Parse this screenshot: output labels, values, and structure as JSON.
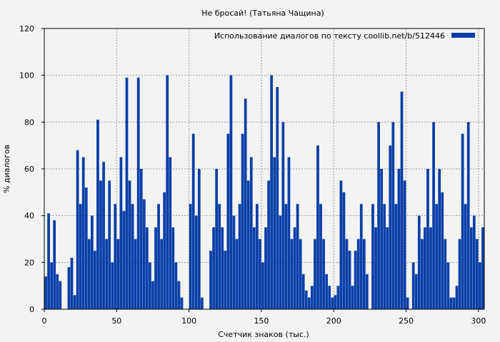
{
  "chart_data": {
    "type": "bar",
    "title": "Не бросай! (Татьяна  Чащина)",
    "xlabel": "Счетчик знаков (тыс.)",
    "ylabel": "% диалогов",
    "xlim": [
      0,
      304
    ],
    "ylim": [
      0,
      120
    ],
    "xticks": [
      0,
      50,
      100,
      150,
      200,
      250,
      300
    ],
    "yticks": [
      0,
      20,
      40,
      60,
      80,
      100,
      120
    ],
    "grid": true,
    "legend_position": "top-right",
    "colors": {
      "bar": "#0a3fa8",
      "grid": "#999999",
      "background": "#f3f3f3"
    },
    "series": [
      {
        "name": "Использование диалогов по тексту  coollib.net/b/512446",
        "x": [
          1,
          3,
          5,
          7,
          9,
          11,
          13,
          15,
          17,
          19,
          21,
          23,
          25,
          27,
          29,
          31,
          33,
          35,
          37,
          39,
          41,
          43,
          45,
          47,
          49,
          51,
          53,
          55,
          57,
          59,
          61,
          63,
          65,
          67,
          69,
          71,
          73,
          75,
          77,
          79,
          81,
          83,
          85,
          87,
          89,
          91,
          93,
          95,
          97,
          99,
          101,
          103,
          105,
          107,
          109,
          111,
          113,
          115,
          117,
          119,
          121,
          123,
          125,
          127,
          129,
          131,
          133,
          135,
          137,
          139,
          141,
          143,
          145,
          147,
          149,
          151,
          153,
          155,
          157,
          159,
          161,
          163,
          165,
          167,
          169,
          171,
          173,
          175,
          177,
          179,
          181,
          183,
          185,
          187,
          189,
          191,
          193,
          195,
          197,
          199,
          201,
          203,
          205,
          207,
          209,
          211,
          213,
          215,
          217,
          219,
          221,
          223,
          225,
          227,
          229,
          231,
          233,
          235,
          237,
          239,
          241,
          243,
          245,
          247,
          249,
          251,
          253,
          255,
          257,
          259,
          261,
          263,
          265,
          267,
          269,
          271,
          273,
          275,
          277,
          279,
          281,
          283,
          285,
          287,
          289,
          291,
          293,
          295,
          297,
          299,
          301,
          303
        ],
        "values": [
          14,
          41,
          20,
          38,
          15,
          12,
          0,
          0,
          18,
          22,
          6,
          68,
          45,
          65,
          52,
          30,
          40,
          25,
          81,
          55,
          63,
          30,
          55,
          20,
          45,
          30,
          65,
          42,
          99,
          55,
          45,
          30,
          99,
          60,
          47,
          35,
          20,
          12,
          35,
          45,
          30,
          50,
          100,
          65,
          35,
          20,
          12,
          5,
          0,
          0,
          45,
          75,
          40,
          60,
          5,
          0,
          0,
          25,
          35,
          60,
          45,
          35,
          25,
          75,
          100,
          40,
          30,
          45,
          75,
          90,
          55,
          65,
          35,
          45,
          30,
          20,
          35,
          55,
          100,
          65,
          95,
          40,
          80,
          45,
          65,
          30,
          35,
          45,
          30,
          15,
          8,
          5,
          10,
          30,
          70,
          45,
          30,
          15,
          10,
          5,
          6,
          10,
          55,
          50,
          30,
          25,
          10,
          25,
          30,
          45,
          30,
          15,
          0,
          45,
          35,
          80,
          60,
          45,
          35,
          70,
          80,
          45,
          60,
          93,
          55,
          5,
          0,
          20,
          15,
          40,
          30,
          35,
          60,
          35,
          80,
          45,
          60,
          50,
          30,
          20,
          5,
          5,
          10,
          30,
          75,
          45,
          80,
          35,
          40,
          30,
          20,
          35
        ]
      }
    ]
  }
}
